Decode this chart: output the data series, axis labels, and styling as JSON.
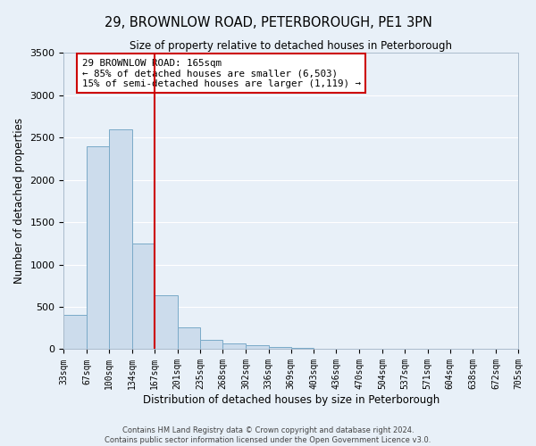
{
  "title": "29, BROWNLOW ROAD, PETERBOROUGH, PE1 3PN",
  "subtitle": "Size of property relative to detached houses in Peterborough",
  "xlabel": "Distribution of detached houses by size in Peterborough",
  "ylabel": "Number of detached properties",
  "bar_color": "#ccdcec",
  "bar_edge_color": "#7aaac8",
  "background_color": "#e8f0f8",
  "fig_background_color": "#e8f0f8",
  "grid_color": "#ffffff",
  "vline_x": 167,
  "vline_color": "#cc0000",
  "annotation_title": "29 BROWNLOW ROAD: 165sqm",
  "annotation_line1": "← 85% of detached houses are smaller (6,503)",
  "annotation_line2": "15% of semi-detached houses are larger (1,119) →",
  "annotation_box_color": "#ffffff",
  "annotation_border_color": "#cc0000",
  "bins": [
    33,
    67,
    100,
    134,
    167,
    201,
    235,
    268,
    302,
    336,
    369,
    403,
    436,
    470,
    504,
    537,
    571,
    604,
    638,
    672,
    705
  ],
  "bin_labels": [
    "33sqm",
    "67sqm",
    "100sqm",
    "134sqm",
    "167sqm",
    "201sqm",
    "235sqm",
    "268sqm",
    "302sqm",
    "336sqm",
    "369sqm",
    "403sqm",
    "436sqm",
    "470sqm",
    "504sqm",
    "537sqm",
    "571sqm",
    "604sqm",
    "638sqm",
    "672sqm",
    "705sqm"
  ],
  "bar_heights": [
    400,
    2400,
    2600,
    1250,
    640,
    260,
    110,
    65,
    45,
    30,
    20,
    0,
    0,
    0,
    0,
    0,
    0,
    0,
    0,
    0
  ],
  "ylim": [
    0,
    3500
  ],
  "yticks": [
    0,
    500,
    1000,
    1500,
    2000,
    2500,
    3000,
    3500
  ],
  "footer_line1": "Contains HM Land Registry data © Crown copyright and database right 2024.",
  "footer_line2": "Contains public sector information licensed under the Open Government Licence v3.0."
}
